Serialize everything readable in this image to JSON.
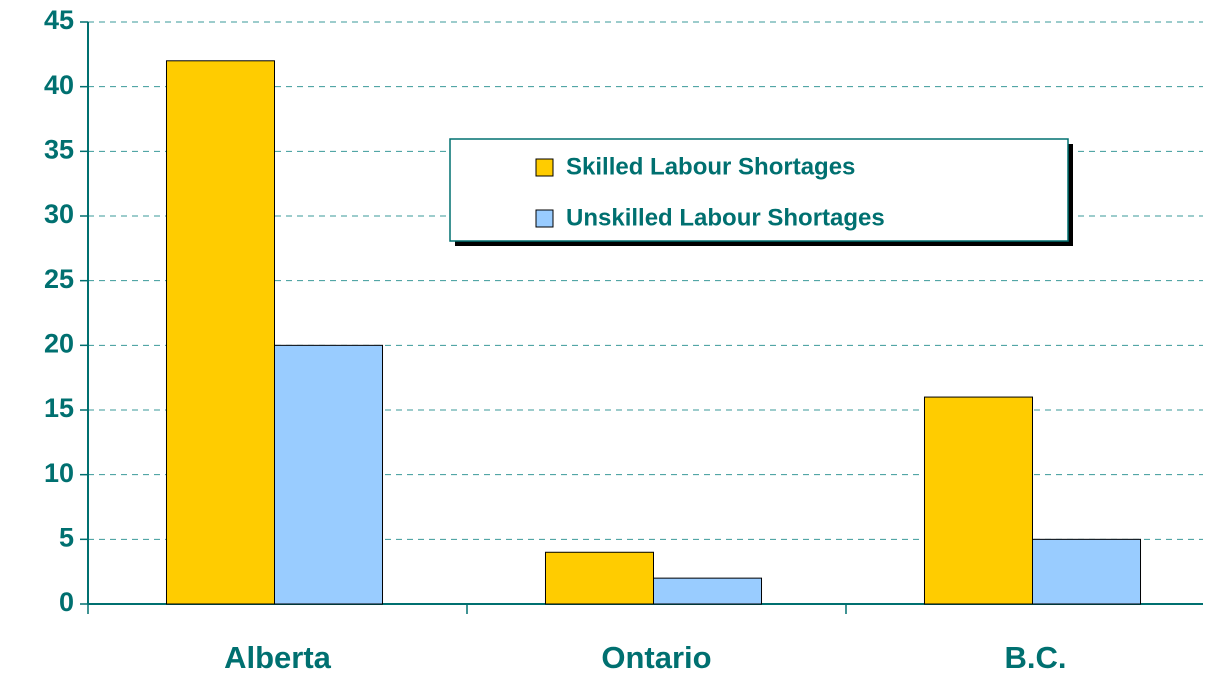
{
  "chart_data": {
    "type": "bar",
    "categories": [
      "Alberta",
      "Ontario",
      "B.C."
    ],
    "series": [
      {
        "name": "Skilled Labour Shortages",
        "color": "#ffcc00",
        "values": [
          42,
          4,
          16
        ]
      },
      {
        "name": "Unskilled Labour Shortages",
        "color": "#99ccff",
        "values": [
          20,
          2,
          5
        ]
      }
    ],
    "ylim": [
      0,
      45
    ],
    "yticks": [
      0,
      5,
      10,
      15,
      20,
      25,
      30,
      35,
      40,
      45
    ],
    "grid": true,
    "legend": "top-right"
  }
}
